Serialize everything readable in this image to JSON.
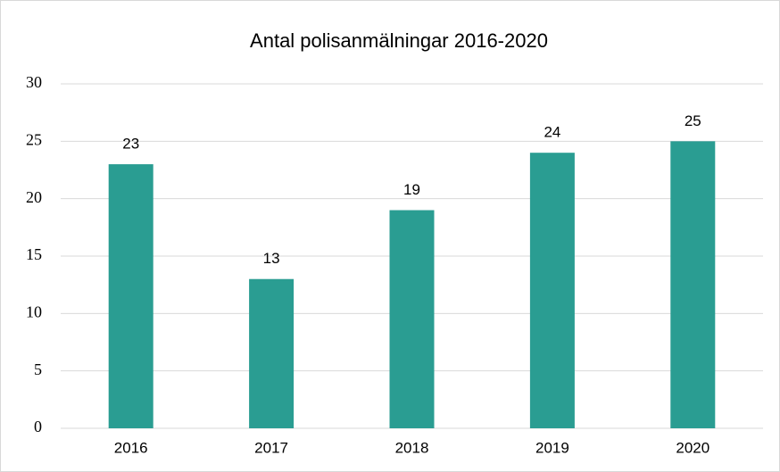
{
  "chart_data": {
    "type": "bar",
    "title": "Antal polisanmälningar 2016-2020",
    "categories": [
      "2016",
      "2017",
      "2018",
      "2019",
      "2020"
    ],
    "values": [
      23,
      13,
      19,
      24,
      25
    ],
    "color": "#2a9d92",
    "ylim": [
      0,
      30
    ],
    "yticks": [
      0,
      5,
      10,
      15,
      20,
      25,
      30
    ],
    "grid": true
  }
}
